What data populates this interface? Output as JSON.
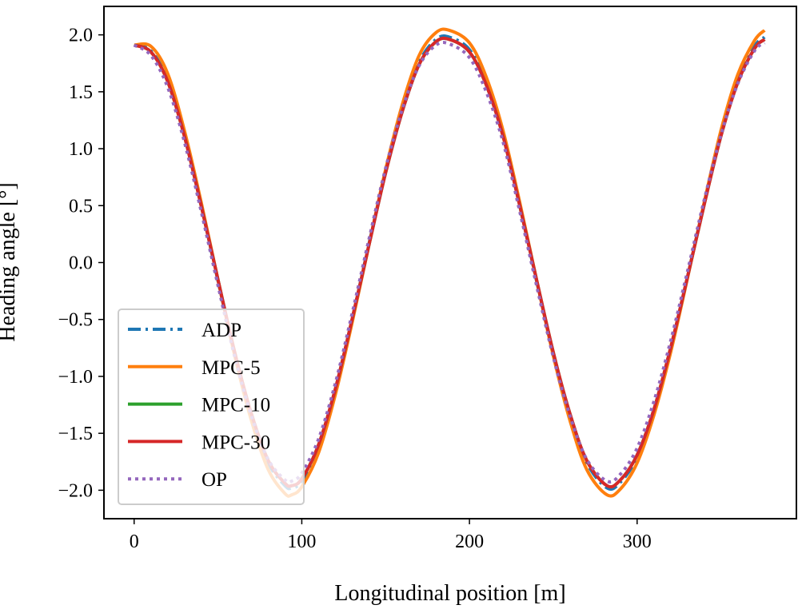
{
  "chart_data": {
    "type": "line",
    "title": "",
    "xlabel": "Longitudinal position [m]",
    "ylabel": "Heading angle [°]",
    "xlim": [
      -18,
      395
    ],
    "ylim": [
      -2.25,
      2.25
    ],
    "x_ticks": [
      0,
      100,
      200,
      300
    ],
    "x_tick_labels": [
      "0",
      "100",
      "200",
      "300"
    ],
    "y_ticks": [
      2.0,
      1.5,
      1.0,
      0.5,
      0.0,
      -0.5,
      -1.0,
      -1.5,
      -2.0
    ],
    "y_tick_labels": [
      "2.0",
      "1.5",
      "1.0",
      "0.5",
      "0.0",
      "−0.5",
      "−1.0",
      "−1.5",
      "−2.0"
    ],
    "grid": false,
    "legend_position": "lower-left",
    "x": [
      0,
      10,
      20,
      30,
      40,
      50,
      60,
      70,
      80,
      90,
      94,
      100,
      110,
      120,
      130,
      140,
      150,
      160,
      170,
      180,
      188,
      200,
      210,
      220,
      230,
      240,
      250,
      260,
      270,
      282,
      290,
      300,
      310,
      320,
      330,
      340,
      350,
      360,
      370,
      376
    ],
    "series": [
      {
        "name": "ADP",
        "color": "#1f77b4",
        "style": "dashdot",
        "values": [
          1.91,
          1.86,
          1.6,
          1.12,
          0.5,
          -0.16,
          -0.8,
          -1.35,
          -1.76,
          -1.96,
          -1.98,
          -1.92,
          -1.62,
          -1.12,
          -0.5,
          0.16,
          0.8,
          1.35,
          1.76,
          1.96,
          1.98,
          1.87,
          1.58,
          1.12,
          0.5,
          -0.16,
          -0.8,
          -1.35,
          -1.76,
          -1.98,
          -1.93,
          -1.71,
          -1.3,
          -0.76,
          -0.13,
          0.52,
          1.12,
          1.6,
          1.9,
          1.98
        ]
      },
      {
        "name": "MPC-5",
        "color": "#ff7f0e",
        "style": "solid",
        "values": [
          1.91,
          1.9,
          1.66,
          1.16,
          0.53,
          -0.15,
          -0.82,
          -1.39,
          -1.82,
          -2.03,
          -2.04,
          -1.97,
          -1.67,
          -1.16,
          -0.53,
          0.15,
          0.82,
          1.39,
          1.82,
          2.02,
          2.04,
          1.93,
          1.63,
          1.16,
          0.53,
          -0.15,
          -0.82,
          -1.39,
          -1.82,
          -2.04,
          -1.99,
          -1.76,
          -1.34,
          -0.79,
          -0.14,
          0.53,
          1.16,
          1.65,
          1.95,
          2.04
        ]
      },
      {
        "name": "MPC-10",
        "color": "#2ca02c",
        "style": "solid",
        "values": [
          1.91,
          1.85,
          1.59,
          1.11,
          0.5,
          -0.15,
          -0.79,
          -1.33,
          -1.74,
          -1.94,
          -1.96,
          -1.9,
          -1.6,
          -1.11,
          -0.5,
          0.15,
          0.79,
          1.33,
          1.74,
          1.94,
          1.96,
          1.85,
          1.56,
          1.11,
          0.5,
          -0.15,
          -0.79,
          -1.33,
          -1.74,
          -1.96,
          -1.91,
          -1.69,
          -1.29,
          -0.75,
          -0.13,
          0.51,
          1.11,
          1.58,
          1.88,
          1.96
        ]
      },
      {
        "name": "MPC-30",
        "color": "#d62728",
        "style": "solid",
        "values": [
          1.91,
          1.85,
          1.59,
          1.11,
          0.5,
          -0.15,
          -0.79,
          -1.33,
          -1.74,
          -1.94,
          -1.96,
          -1.9,
          -1.6,
          -1.11,
          -0.5,
          0.15,
          0.79,
          1.33,
          1.74,
          1.94,
          1.96,
          1.85,
          1.56,
          1.11,
          0.5,
          -0.15,
          -0.79,
          -1.33,
          -1.74,
          -1.96,
          -1.91,
          -1.69,
          -1.29,
          -0.75,
          -0.13,
          0.51,
          1.11,
          1.58,
          1.88,
          1.96
        ]
      },
      {
        "name": "OP",
        "color": "#9467bd",
        "style": "dotted",
        "values": [
          1.91,
          1.82,
          1.54,
          1.06,
          0.45,
          -0.2,
          -0.83,
          -1.35,
          -1.73,
          -1.91,
          -1.92,
          -1.85,
          -1.55,
          -1.06,
          -0.45,
          0.2,
          0.83,
          1.35,
          1.73,
          1.91,
          1.92,
          1.8,
          1.5,
          1.06,
          0.45,
          -0.2,
          -0.83,
          -1.35,
          -1.73,
          -1.92,
          -1.86,
          -1.63,
          -1.22,
          -0.69,
          -0.08,
          0.55,
          1.12,
          1.57,
          1.86,
          1.93
        ]
      }
    ]
  }
}
